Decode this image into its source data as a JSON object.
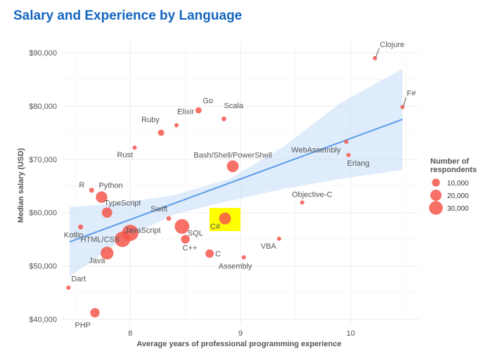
{
  "chart_data": {
    "type": "scatter",
    "title": "Salary and Experience by Language",
    "xlabel": "Average years of professional programming experience",
    "ylabel": "Median salary (USD)",
    "xlim": [
      7.38,
      10.62
    ],
    "ylim": [
      39000,
      92000
    ],
    "x_ticks": [
      8,
      9,
      10
    ],
    "y_ticks": [
      40000,
      50000,
      60000,
      70000,
      80000,
      90000
    ],
    "y_tick_labels": [
      "$40,000",
      "$50,000",
      "$60,000",
      "$70,000",
      "$80,000",
      "$90,000"
    ],
    "grid": true,
    "point_color": "#f4574b",
    "trend_color": "#5b9de8",
    "band_color": "#c9dff8",
    "highlight_color": "#ffff00",
    "highlighted": "C#",
    "trend_line": {
      "x": [
        7.45,
        10.47
      ],
      "y": [
        54500,
        77500
      ]
    },
    "confidence_band": {
      "x": [
        7.45,
        7.9,
        8.4,
        8.9,
        9.4,
        9.9,
        10.47
      ],
      "lower": [
        48000,
        54500,
        59700,
        62200,
        64500,
        66300,
        68000
      ],
      "upper": [
        61000,
        61800,
        63300,
        66300,
        72500,
        80500,
        87000
      ]
    },
    "points": [
      {
        "name": "Clojure",
        "x": 10.22,
        "y": 89000,
        "respondents": 400
      },
      {
        "name": "F#",
        "x": 10.47,
        "y": 79800,
        "respondents": 500
      },
      {
        "name": "Go",
        "x": 8.62,
        "y": 79200,
        "respondents": 6000
      },
      {
        "name": "Scala",
        "x": 8.85,
        "y": 77600,
        "respondents": 3500
      },
      {
        "name": "Elixir",
        "x": 8.42,
        "y": 76400,
        "respondents": 1000
      },
      {
        "name": "Ruby",
        "x": 8.28,
        "y": 75000,
        "respondents": 6500
      },
      {
        "name": "Rust",
        "x": 8.04,
        "y": 72200,
        "respondents": 2500
      },
      {
        "name": "WebAssembly",
        "x": 9.96,
        "y": 73300,
        "respondents": 600
      },
      {
        "name": "Erlang",
        "x": 9.98,
        "y": 70800,
        "respondents": 600
      },
      {
        "name": "Bash/Shell/PowerShell",
        "x": 8.93,
        "y": 68700,
        "respondents": 22000
      },
      {
        "name": "R",
        "x": 7.65,
        "y": 64200,
        "respondents": 4000
      },
      {
        "name": "Python",
        "x": 7.74,
        "y": 62900,
        "respondents": 21000
      },
      {
        "name": "Objective-C",
        "x": 9.56,
        "y": 61900,
        "respondents": 2500
      },
      {
        "name": "TypeScript",
        "x": 7.79,
        "y": 60000,
        "respondents": 17000
      },
      {
        "name": "Swift",
        "x": 8.35,
        "y": 58900,
        "respondents": 3500
      },
      {
        "name": "C#",
        "x": 8.86,
        "y": 58900,
        "respondents": 22000
      },
      {
        "name": "Kotlin",
        "x": 7.55,
        "y": 57300,
        "respondents": 4000
      },
      {
        "name": "SQL",
        "x": 8.47,
        "y": 57400,
        "respondents": 34000
      },
      {
        "name": "JavaScript",
        "x": 8.0,
        "y": 56200,
        "respondents": 42000
      },
      {
        "name": "HTML/CSS",
        "x": 7.93,
        "y": 55000,
        "respondents": 38000
      },
      {
        "name": "VBA",
        "x": 9.35,
        "y": 55100,
        "respondents": 2500
      },
      {
        "name": "C++",
        "x": 8.5,
        "y": 55000,
        "respondents": 12000
      },
      {
        "name": "C",
        "x": 8.72,
        "y": 52300,
        "respondents": 11000
      },
      {
        "name": "Java",
        "x": 7.79,
        "y": 52400,
        "respondents": 26000
      },
      {
        "name": "Assembly",
        "x": 9.03,
        "y": 51600,
        "respondents": 2000
      },
      {
        "name": "Dart",
        "x": 7.44,
        "y": 45900,
        "respondents": 1200
      },
      {
        "name": "PHP",
        "x": 7.68,
        "y": 41200,
        "respondents": 14000
      }
    ],
    "legend": {
      "title_line1": "Number of",
      "title_line2": "respondents",
      "position": "right",
      "items": [
        {
          "label": "10,000",
          "value": 10000
        },
        {
          "label": "20,000",
          "value": 20000
        },
        {
          "label": "30,000",
          "value": 30000
        }
      ]
    }
  }
}
